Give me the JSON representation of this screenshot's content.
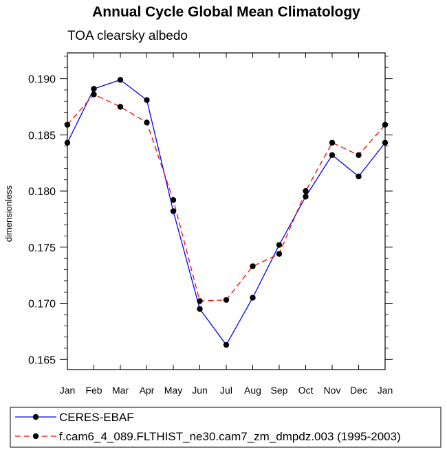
{
  "chart_data": {
    "type": "line",
    "title": "Annual Cycle Global Mean Climatology",
    "subtitle": "TOA clearsky albedo",
    "ylabel": "dimensionless",
    "xlabel": "",
    "categories": [
      "Jan",
      "Feb",
      "Mar",
      "Apr",
      "May",
      "Jun",
      "Jul",
      "Aug",
      "Sep",
      "Oct",
      "Nov",
      "Dec",
      "Jan"
    ],
    "yticks": [
      "0.165",
      "0.170",
      "0.175",
      "0.180",
      "0.185",
      "0.190"
    ],
    "ylim": [
      0.1641,
      0.1923
    ],
    "grid": false,
    "legend_position": "bottom",
    "series": [
      {
        "name": "CERES-EBAF",
        "color": "#0000ff",
        "dash": "solid",
        "values": [
          0.1843,
          0.1891,
          0.1899,
          0.1881,
          0.1782,
          0.1695,
          0.1663,
          0.1705,
          0.1752,
          0.1795,
          0.1832,
          0.1813,
          0.1843
        ]
      },
      {
        "name": "f.cam6_4_089.FLTHIST_ne30.cam7_zm_dmpdz.003 (1995-2003)",
        "color": "#ff0000",
        "dash": "dashed",
        "values": [
          0.1859,
          0.1886,
          0.1875,
          0.1861,
          0.1792,
          0.1702,
          0.1703,
          0.1733,
          0.1744,
          0.18,
          0.1843,
          0.1832,
          0.1859
        ]
      }
    ]
  }
}
